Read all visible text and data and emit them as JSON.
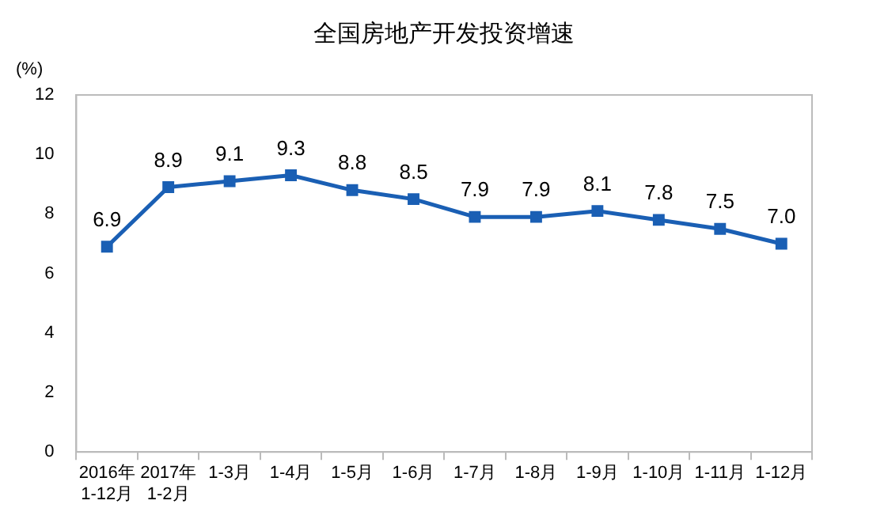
{
  "chart_data": {
    "type": "line",
    "title": "全国房地产开发投资增速",
    "ylabel": "(%)",
    "categories": [
      "2016年\n1-12月",
      "2017年\n1-2月",
      "1-3月",
      "1-4月",
      "1-5月",
      "1-6月",
      "1-7月",
      "1-8月",
      "1-9月",
      "1-10月",
      "1-11月",
      "1-12月"
    ],
    "values": [
      6.9,
      8.9,
      9.1,
      9.3,
      8.8,
      8.5,
      7.9,
      7.9,
      8.1,
      7.8,
      7.5,
      7.0
    ],
    "color": "#1a5fb4",
    "ylim": [
      0,
      12
    ],
    "yticks": [
      0,
      2,
      4,
      6,
      8,
      10,
      12
    ],
    "grid": false,
    "marker": "square",
    "line_style": "solid",
    "value_labels": [
      "6.9",
      "8.9",
      "9.1",
      "9.3",
      "8.8",
      "8.5",
      "7.9",
      "7.9",
      "8.1",
      "7.8",
      "7.5",
      "7.0"
    ],
    "legend": false
  }
}
